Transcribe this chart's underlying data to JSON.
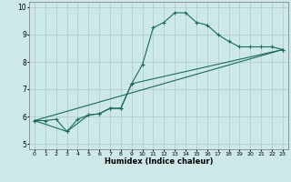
{
  "xlabel": "Humidex (Indice chaleur)",
  "xlim": [
    -0.5,
    23.5
  ],
  "ylim": [
    4.8,
    10.2
  ],
  "yticks": [
    5,
    6,
    7,
    8,
    9,
    10
  ],
  "xticks": [
    0,
    1,
    2,
    3,
    4,
    5,
    6,
    7,
    8,
    9,
    10,
    11,
    12,
    13,
    14,
    15,
    16,
    17,
    18,
    19,
    20,
    21,
    22,
    23
  ],
  "bg_color": "#cce8e8",
  "grid_color": "#b0c8c8",
  "line_color": "#1a6b5a",
  "line1_x": [
    0,
    1,
    2,
    3,
    4,
    5,
    6,
    7,
    8,
    9,
    10,
    11,
    12,
    13,
    14,
    15,
    16,
    17,
    18,
    19,
    20,
    21,
    22,
    23
  ],
  "line1_y": [
    5.85,
    5.85,
    5.9,
    5.45,
    5.9,
    6.05,
    6.1,
    6.3,
    6.3,
    7.2,
    7.9,
    9.25,
    9.45,
    9.8,
    9.8,
    9.45,
    9.35,
    9.0,
    8.75,
    8.55,
    8.55,
    8.55,
    8.55,
    8.45
  ],
  "line2_x": [
    0,
    3,
    5,
    6,
    7,
    8,
    9,
    23
  ],
  "line2_y": [
    5.85,
    5.45,
    6.05,
    6.1,
    6.3,
    6.3,
    7.2,
    8.45
  ],
  "line3_x": [
    0,
    23
  ],
  "line3_y": [
    5.85,
    8.45
  ]
}
